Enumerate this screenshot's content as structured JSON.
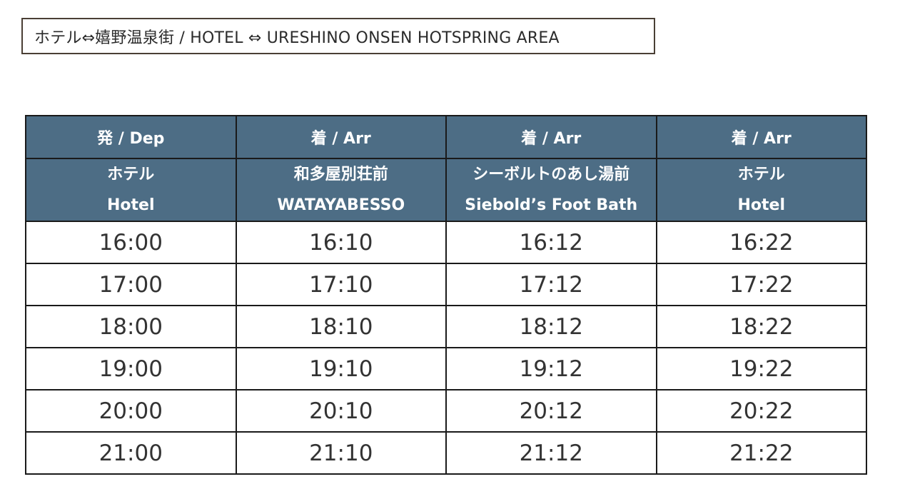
{
  "title": "ホテル⇔嬉野温泉街 / HOTEL ⇔ URESHINO ONSEN HOTSPRING AREA",
  "columns": [
    {
      "label": "発 / Dep",
      "stop_jp": "ホテル",
      "stop_en": "Hotel"
    },
    {
      "label": "着 / Arr",
      "stop_jp": "和多屋別荘前",
      "stop_en": "WATAYABESSO"
    },
    {
      "label": "着 / Arr",
      "stop_jp": "シーボルトのあし湯前",
      "stop_en": "Siebold’s Foot Bath"
    },
    {
      "label": "着 / Arr",
      "stop_jp": "ホテル",
      "stop_en": "Hotel"
    }
  ],
  "rows": [
    [
      "16:00",
      "16:10",
      "16:12",
      "16:22"
    ],
    [
      "17:00",
      "17:10",
      "17:12",
      "17:22"
    ],
    [
      "18:00",
      "18:10",
      "18:12",
      "18:22"
    ],
    [
      "19:00",
      "19:10",
      "19:12",
      "19:22"
    ],
    [
      "20:00",
      "20:10",
      "20:12",
      "20:22"
    ],
    [
      "21:00",
      "21:10",
      "21:12",
      "21:22"
    ]
  ],
  "colors": {
    "header_bg": "#4d6d85",
    "header_text": "#ffffff",
    "border": "#1a1a1a",
    "title_border": "#4a3f35"
  }
}
